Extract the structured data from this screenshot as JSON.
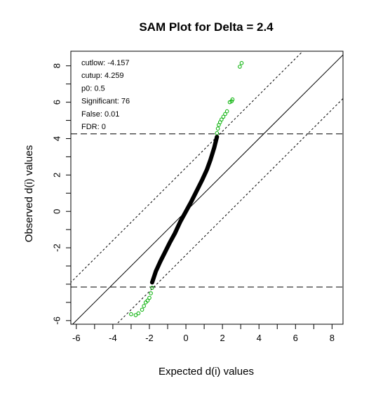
{
  "chart_data": {
    "type": "scatter",
    "title": "SAM Plot for Delta = 2.4",
    "xlabel": "Expected d(i) values",
    "ylabel": "Observed d(i) values",
    "xlim": [
      -6.3,
      8.6
    ],
    "ylim": [
      -6.2,
      8.8
    ],
    "x_ticks": [
      -6,
      -4,
      -2,
      0,
      2,
      4,
      6,
      8
    ],
    "x_tick_labels": [
      "-6",
      "-4",
      "-2",
      "0",
      "2",
      "4",
      "6",
      "8"
    ],
    "x_minor_ticks": [
      -5,
      -3,
      -1,
      1,
      3,
      5,
      7
    ],
    "y_ticks": [
      -6,
      -2,
      0,
      2,
      4,
      6,
      8
    ],
    "y_tick_labels": [
      "-6",
      "-2",
      "0",
      "2",
      "4",
      "6",
      "8"
    ],
    "y_minor_ticks": [
      -5,
      -4,
      -3,
      -1,
      1,
      3,
      5,
      7
    ],
    "grid": false,
    "legend": "none",
    "stats": [
      {
        "label": "cutlow:",
        "value": "-4.157"
      },
      {
        "label": "cutup:",
        "value": "4.259"
      },
      {
        "label": "p0:",
        "value": "0.5"
      },
      {
        "label": "Significant:",
        "value": "76"
      },
      {
        "label": "False:",
        "value": "0.01"
      },
      {
        "label": "FDR:",
        "value": "0"
      }
    ],
    "cutlow": -4.157,
    "cutup": 4.259,
    "delta": 2.4,
    "reference_lines": [
      {
        "type": "identity",
        "intercept": 0,
        "slope": 1,
        "style": "solid"
      },
      {
        "type": "delta_upper",
        "intercept": 2.4,
        "slope": 1,
        "style": "dotted"
      },
      {
        "type": "delta_lower",
        "intercept": -2.4,
        "slope": 1,
        "style": "dotted"
      },
      {
        "type": "horizontal",
        "y": 4.259,
        "style": "dashed"
      },
      {
        "type": "horizontal",
        "y": -4.157,
        "style": "dashed"
      }
    ],
    "series": [
      {
        "color": "#000000",
        "marker": "open-circle",
        "points": [
          [
            -1.85,
            -3.9
          ],
          [
            -1.65,
            -3.3
          ],
          [
            -1.4,
            -2.75
          ],
          [
            -1.15,
            -2.25
          ],
          [
            -0.9,
            -1.75
          ],
          [
            -0.6,
            -1.2
          ],
          [
            -0.3,
            -0.55
          ],
          [
            0.0,
            0.0
          ],
          [
            0.3,
            0.55
          ],
          [
            0.6,
            1.15
          ],
          [
            0.9,
            1.75
          ],
          [
            1.15,
            2.3
          ],
          [
            1.35,
            2.85
          ],
          [
            1.55,
            3.5
          ],
          [
            1.7,
            4.1
          ]
        ]
      },
      {
        "color": "#00b000",
        "marker": "open-circle",
        "points": [
          [
            -3.0,
            -5.65
          ],
          [
            -2.75,
            -5.7
          ],
          [
            -2.6,
            -5.6
          ],
          [
            -2.4,
            -5.4
          ],
          [
            -2.3,
            -5.2
          ],
          [
            -2.2,
            -5.0
          ],
          [
            -2.1,
            -4.9
          ],
          [
            -2.0,
            -4.75
          ],
          [
            -1.92,
            -4.5
          ],
          [
            -1.85,
            -4.2
          ],
          [
            1.7,
            4.3
          ],
          [
            1.75,
            4.55
          ],
          [
            1.8,
            4.75
          ],
          [
            1.87,
            4.9
          ],
          [
            1.95,
            5.05
          ],
          [
            2.05,
            5.2
          ],
          [
            2.15,
            5.35
          ],
          [
            2.25,
            5.5
          ],
          [
            2.4,
            6.0
          ],
          [
            2.5,
            6.05
          ],
          [
            2.55,
            6.15
          ],
          [
            2.95,
            7.95
          ],
          [
            3.05,
            8.15
          ]
        ]
      }
    ]
  }
}
